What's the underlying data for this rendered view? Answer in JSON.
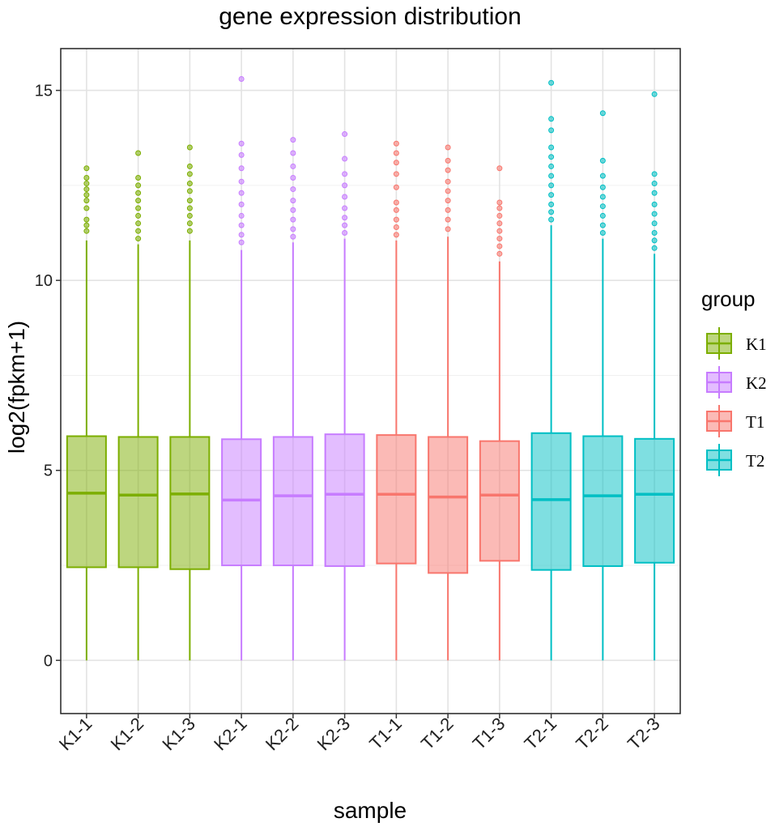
{
  "chart_data": {
    "type": "box",
    "title": "gene expression distribution",
    "xlabel": "sample",
    "ylabel": "log2(fpkm+1)",
    "ylim": [
      -1.4,
      16.1
    ],
    "yticks": [
      0,
      5,
      10,
      15
    ],
    "grid": true,
    "legend": {
      "title": "group",
      "placement": "right",
      "entries": [
        {
          "label": "K1",
          "color": "#7CAE00"
        },
        {
          "label": "K2",
          "color": "#C77CFF"
        },
        {
          "label": "T1",
          "color": "#F8766D"
        },
        {
          "label": "T2",
          "color": "#00BFC4"
        }
      ]
    },
    "samples": [
      {
        "name": "K1-1",
        "group": "K1",
        "q1": 2.45,
        "median": 4.4,
        "q3": 5.9,
        "whisker_low": 0,
        "whisker_high": 11.05,
        "outliers": [
          11.3,
          11.45,
          11.6,
          11.9,
          12.1,
          12.25,
          12.4,
          12.55,
          12.7,
          12.95
        ]
      },
      {
        "name": "K1-2",
        "group": "K1",
        "q1": 2.45,
        "median": 4.35,
        "q3": 5.88,
        "whisker_low": 0,
        "whisker_high": 10.95,
        "outliers": [
          11.1,
          11.3,
          11.5,
          11.7,
          11.9,
          12.1,
          12.3,
          12.5,
          12.7,
          13.35
        ]
      },
      {
        "name": "K1-3",
        "group": "K1",
        "q1": 2.4,
        "median": 4.38,
        "q3": 5.88,
        "whisker_low": 0,
        "whisker_high": 11.05,
        "outliers": [
          11.3,
          11.5,
          11.7,
          11.9,
          12.1,
          12.35,
          12.55,
          12.8,
          13.0,
          13.5
        ]
      },
      {
        "name": "K2-1",
        "group": "K2",
        "q1": 2.5,
        "median": 4.22,
        "q3": 5.82,
        "whisker_low": 0,
        "whisker_high": 10.8,
        "outliers": [
          11.0,
          11.2,
          11.45,
          11.7,
          12.0,
          12.3,
          12.6,
          12.95,
          13.3,
          13.6,
          15.3
        ]
      },
      {
        "name": "K2-2",
        "group": "K2",
        "q1": 2.5,
        "median": 4.33,
        "q3": 5.88,
        "whisker_low": 0,
        "whisker_high": 11.0,
        "outliers": [
          11.15,
          11.35,
          11.6,
          11.85,
          12.1,
          12.4,
          12.7,
          13.0,
          13.35,
          13.7
        ]
      },
      {
        "name": "K2-3",
        "group": "K2",
        "q1": 2.48,
        "median": 4.37,
        "q3": 5.95,
        "whisker_low": 0,
        "whisker_high": 11.1,
        "outliers": [
          11.25,
          11.45,
          11.65,
          11.9,
          12.2,
          12.5,
          12.8,
          13.2,
          13.85
        ]
      },
      {
        "name": "T1-1",
        "group": "T1",
        "q1": 2.55,
        "median": 4.37,
        "q3": 5.93,
        "whisker_low": 0,
        "whisker_high": 11.05,
        "outliers": [
          11.2,
          11.4,
          11.6,
          11.85,
          12.05,
          12.45,
          12.8,
          13.1,
          13.35,
          13.6
        ]
      },
      {
        "name": "T1-2",
        "group": "T1",
        "q1": 2.3,
        "median": 4.3,
        "q3": 5.88,
        "whisker_low": 0,
        "whisker_high": 11.15,
        "outliers": [
          11.35,
          11.6,
          11.85,
          12.1,
          12.35,
          12.6,
          12.9,
          13.15,
          13.5
        ]
      },
      {
        "name": "T1-3",
        "group": "T1",
        "q1": 2.62,
        "median": 4.35,
        "q3": 5.77,
        "whisker_low": 0,
        "whisker_high": 10.5,
        "outliers": [
          10.7,
          10.9,
          11.1,
          11.3,
          11.5,
          11.7,
          11.9,
          12.05,
          12.95
        ]
      },
      {
        "name": "T2-1",
        "group": "T2",
        "q1": 2.38,
        "median": 4.23,
        "q3": 5.98,
        "whisker_low": 0,
        "whisker_high": 11.45,
        "outliers": [
          11.6,
          11.8,
          12.0,
          12.25,
          12.5,
          12.75,
          13.0,
          13.25,
          13.5,
          13.95,
          14.25,
          15.2
        ]
      },
      {
        "name": "T2-2",
        "group": "T2",
        "q1": 2.48,
        "median": 4.33,
        "q3": 5.9,
        "whisker_low": 0,
        "whisker_high": 11.1,
        "outliers": [
          11.25,
          11.45,
          11.7,
          11.95,
          12.2,
          12.45,
          12.75,
          13.15,
          14.4
        ]
      },
      {
        "name": "T2-3",
        "group": "T2",
        "q1": 2.57,
        "median": 4.37,
        "q3": 5.83,
        "whisker_low": 0,
        "whisker_high": 10.7,
        "outliers": [
          10.85,
          11.05,
          11.25,
          11.5,
          11.75,
          12.0,
          12.3,
          12.55,
          12.8,
          14.9
        ]
      }
    ]
  }
}
